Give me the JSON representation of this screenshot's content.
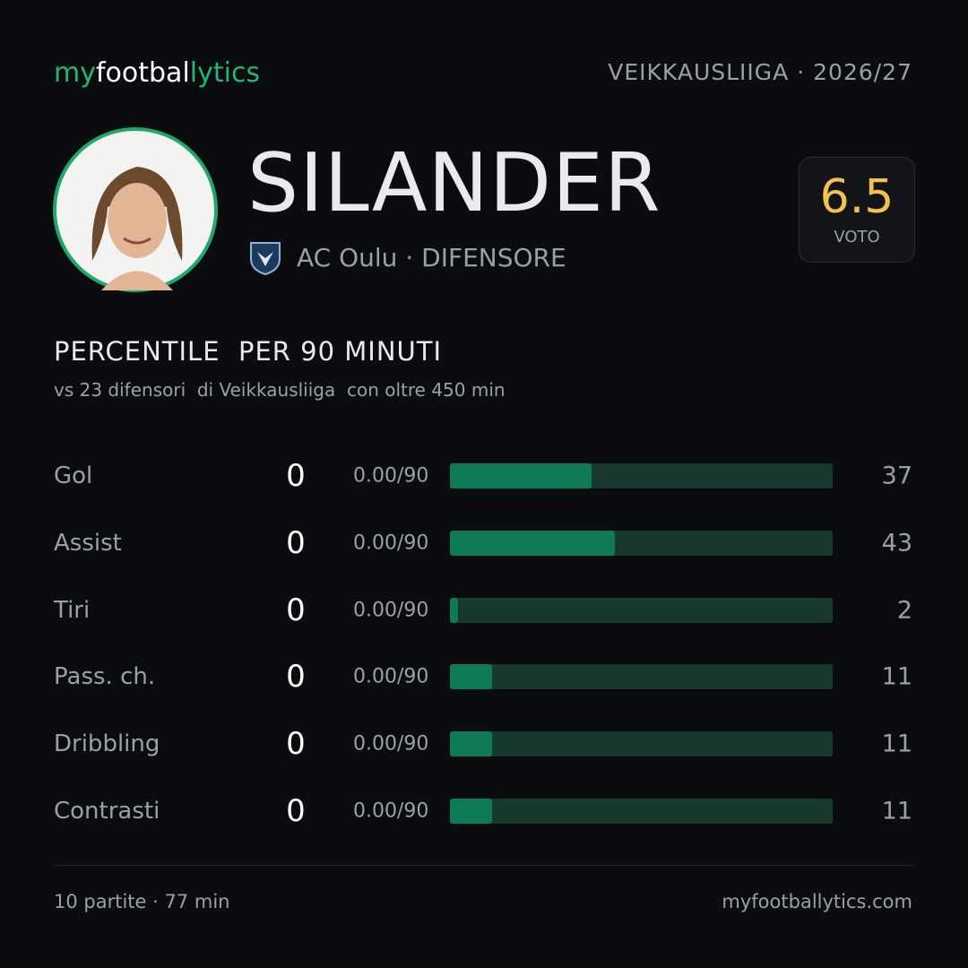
{
  "header": {
    "brand": [
      "my",
      "footbal",
      "lytics"
    ],
    "league": "VEIKKAUSLIIGA",
    "season": "· 2026/27"
  },
  "player": {
    "name": "SILANDER",
    "club": "AC Oulu",
    "role": "· DIFENSORE",
    "rating": 6.5,
    "rating_label": "VOTO"
  },
  "section": {
    "title": [
      "PERCENTILE",
      "PER 90 MINUTI"
    ],
    "subtitle": [
      "vs 23 difensori",
      "di Veikkausliiga",
      "con oltre 450 min"
    ]
  },
  "stats": {
    "xlim": [
      0,
      100
    ],
    "rows": [
      {
        "label": "Gol",
        "value": 0,
        "per90": "0.00/90",
        "percentile": 37
      },
      {
        "label": "Assist",
        "value": 0,
        "per90": "0.00/90",
        "percentile": 43
      },
      {
        "label": "Tiri",
        "value": 0,
        "per90": "0.00/90",
        "percentile": 2
      },
      {
        "label": "Pass. ch.",
        "value": 0,
        "per90": "0.00/90",
        "percentile": 11
      },
      {
        "label": "Dribbling",
        "value": 0,
        "per90": "0.00/90",
        "percentile": 11
      },
      {
        "label": "Contrasti",
        "value": 0,
        "per90": "0.00/90",
        "percentile": 11
      }
    ]
  },
  "footer": {
    "matches": "10 partite",
    "minutes": "· 77 min",
    "site": "myfootballytics.com"
  }
}
